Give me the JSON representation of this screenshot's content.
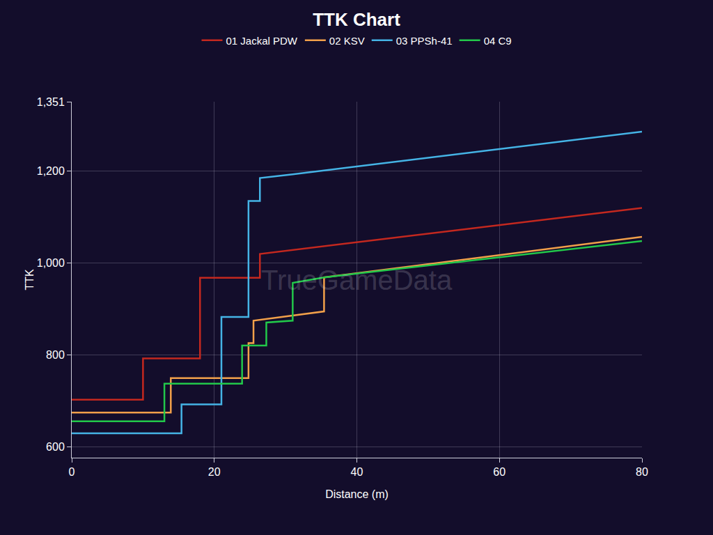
{
  "chart_data": {
    "type": "line",
    "title": "TTK Chart",
    "x_label": "Distance (m)",
    "y_label": "TTK",
    "annotations": [
      "TrueGameData"
    ],
    "series": [
      {
        "name": "01 Jackal PDW",
        "color": "#c4281f",
        "x": [
          0,
          10,
          10,
          18,
          18,
          26.4,
          26.4,
          80
        ],
        "values": [
          703,
          703,
          793,
          793,
          968,
          968,
          1020,
          1120
        ]
      },
      {
        "name": "02 KSV",
        "color": "#f2a04a",
        "x": [
          0,
          13.9,
          13.9,
          24.8,
          24.8,
          25.5,
          25.5,
          35.4,
          35.4,
          80
        ],
        "values": [
          675,
          675,
          750,
          750,
          826,
          826,
          875,
          895,
          969,
          1057
        ]
      },
      {
        "name": "03 PPSh-41",
        "color": "#45b4e6",
        "x": [
          0,
          15.4,
          15.4,
          21,
          21,
          24.8,
          24.8,
          26.4,
          26.4,
          31,
          80
        ],
        "values": [
          630,
          630,
          693,
          693,
          883,
          883,
          1135,
          1135,
          1185,
          1193,
          1286
        ]
      },
      {
        "name": "04 C9",
        "color": "#22c84a",
        "x": [
          0,
          13,
          13,
          23.9,
          23.9,
          27.3,
          27.3,
          31,
          31,
          35.4,
          80
        ],
        "values": [
          656,
          656,
          738,
          738,
          821,
          821,
          871,
          875,
          957,
          969,
          1048
        ]
      }
    ],
    "xlim": [
      0,
      80
    ],
    "xticks": [
      0,
      20,
      40,
      60,
      80
    ],
    "ylim": [
      577,
      1351
    ],
    "yticks": [
      600,
      800,
      {
        "value": 1000,
        "label": "1,000"
      },
      {
        "value": 1200,
        "label": "1,200"
      },
      {
        "value": 1351,
        "label": "1,351"
      }
    ],
    "grid": true,
    "legend": "top"
  }
}
